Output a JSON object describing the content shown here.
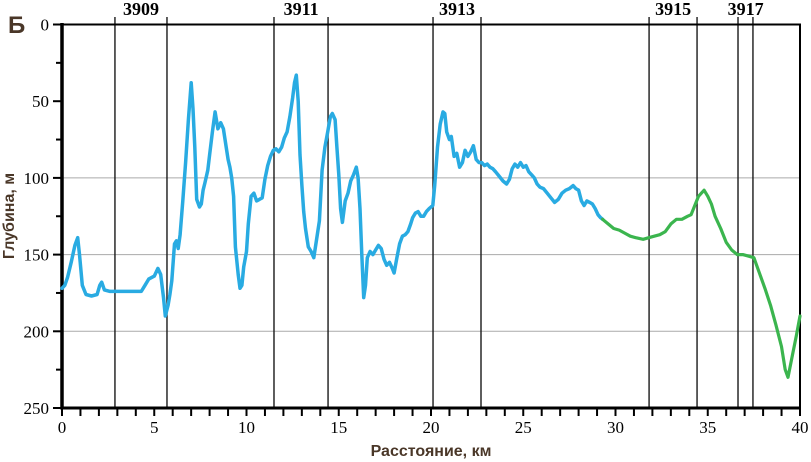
{
  "figure": {
    "corner_label": "Б",
    "background_color": "#ffffff",
    "border_color": "#000000",
    "gridline_color": "#aaaaaa",
    "axis_title_color": "#4a3728",
    "tick_label_color": "#000000",
    "gridlines_y_m": [
      100,
      150,
      200
    ],
    "station_lines": {
      "color": "#1a1a1a",
      "stations": [
        {
          "label": "3909",
          "label_km": 4.28,
          "lines_km": [
            2.87,
            5.69
          ]
        },
        {
          "label": "3911",
          "label_km": 12.96,
          "lines_km": [
            11.49,
            14.42
          ]
        },
        {
          "label": "3913",
          "label_km": 21.41,
          "lines_km": [
            20.11,
            22.71
          ]
        },
        {
          "label": "3915",
          "label_km": 33.12,
          "lines_km": [
            31.82,
            34.42
          ]
        },
        {
          "label": "3917",
          "label_km": 37.05,
          "lines_km": [
            36.64,
            37.45
          ]
        }
      ]
    }
  },
  "chart_data": {
    "type": "line",
    "title": "",
    "xlabel": "Расстояние, км",
    "ylabel": "Глубина, м",
    "xlim": [
      0,
      40
    ],
    "ylim": [
      0,
      250
    ],
    "y_inverted": true,
    "grid": "horizontal only at 100/150/200",
    "legend": "none",
    "x_axis": {
      "minor_step": 1,
      "label_step": 5,
      "tick_labels": [
        "0",
        "5",
        "10",
        "15",
        "20",
        "25",
        "30",
        "35",
        "40"
      ]
    },
    "y_axis": {
      "minor_step": 25,
      "label_step": 50,
      "tick_labels": [
        "0",
        "50",
        "100",
        "150",
        "200",
        "250"
      ]
    },
    "series": [
      {
        "name": "depth-profile-west-segment",
        "color": "#29abe2",
        "width": 3.5,
        "points": [
          [
            0.0,
            172
          ],
          [
            0.15,
            170
          ],
          [
            0.3,
            165
          ],
          [
            0.5,
            155
          ],
          [
            0.7,
            144
          ],
          [
            0.85,
            139
          ],
          [
            0.95,
            150
          ],
          [
            1.1,
            170
          ],
          [
            1.3,
            176
          ],
          [
            1.6,
            177
          ],
          [
            1.9,
            176
          ],
          [
            2.05,
            170
          ],
          [
            2.15,
            168
          ],
          [
            2.3,
            173
          ],
          [
            2.6,
            174
          ],
          [
            3.0,
            174
          ],
          [
            3.5,
            174
          ],
          [
            4.0,
            174
          ],
          [
            4.3,
            174
          ],
          [
            4.5,
            170
          ],
          [
            4.7,
            166
          ],
          [
            5.0,
            164
          ],
          [
            5.2,
            159
          ],
          [
            5.35,
            163
          ],
          [
            5.5,
            178
          ],
          [
            5.6,
            190
          ],
          [
            5.75,
            183
          ],
          [
            5.85,
            176
          ],
          [
            5.95,
            167
          ],
          [
            6.1,
            143
          ],
          [
            6.2,
            141
          ],
          [
            6.3,
            146
          ],
          [
            6.4,
            137
          ],
          [
            6.55,
            115
          ],
          [
            6.7,
            90
          ],
          [
            6.85,
            62
          ],
          [
            7.0,
            38
          ],
          [
            7.1,
            55
          ],
          [
            7.2,
            80
          ],
          [
            7.3,
            114
          ],
          [
            7.45,
            119
          ],
          [
            7.55,
            117
          ],
          [
            7.65,
            108
          ],
          [
            7.75,
            103
          ],
          [
            7.9,
            95
          ],
          [
            8.0,
            85
          ],
          [
            8.15,
            70
          ],
          [
            8.3,
            57
          ],
          [
            8.45,
            68
          ],
          [
            8.6,
            64
          ],
          [
            8.75,
            68
          ],
          [
            8.9,
            80
          ],
          [
            9.0,
            88
          ],
          [
            9.1,
            93
          ],
          [
            9.2,
            100
          ],
          [
            9.3,
            112
          ],
          [
            9.4,
            145
          ],
          [
            9.55,
            163
          ],
          [
            9.65,
            172
          ],
          [
            9.75,
            170
          ],
          [
            9.85,
            158
          ],
          [
            10.0,
            148
          ],
          [
            10.1,
            130
          ],
          [
            10.25,
            112
          ],
          [
            10.4,
            110
          ],
          [
            10.55,
            115
          ],
          [
            10.7,
            114
          ],
          [
            10.85,
            113
          ],
          [
            11.0,
            101
          ],
          [
            11.15,
            92
          ],
          [
            11.3,
            86
          ],
          [
            11.45,
            82
          ],
          [
            11.6,
            81
          ],
          [
            11.75,
            83
          ],
          [
            11.9,
            80
          ],
          [
            12.05,
            74
          ],
          [
            12.2,
            70
          ],
          [
            12.35,
            60
          ],
          [
            12.5,
            48
          ],
          [
            12.6,
            38
          ],
          [
            12.7,
            33
          ],
          [
            12.8,
            50
          ],
          [
            12.9,
            85
          ],
          [
            13.0,
            105
          ],
          [
            13.1,
            122
          ],
          [
            13.2,
            133
          ],
          [
            13.35,
            145
          ],
          [
            13.5,
            148
          ],
          [
            13.65,
            152
          ],
          [
            13.8,
            140
          ],
          [
            13.95,
            128
          ],
          [
            14.1,
            95
          ],
          [
            14.25,
            80
          ],
          [
            14.4,
            70
          ],
          [
            14.55,
            60
          ],
          [
            14.65,
            58
          ],
          [
            14.8,
            62
          ],
          [
            14.9,
            80
          ],
          [
            15.0,
            98
          ],
          [
            15.1,
            120
          ],
          [
            15.2,
            129
          ],
          [
            15.35,
            115
          ],
          [
            15.5,
            110
          ],
          [
            15.65,
            102
          ],
          [
            15.8,
            98
          ],
          [
            15.95,
            93
          ],
          [
            16.05,
            100
          ],
          [
            16.15,
            120
          ],
          [
            16.25,
            150
          ],
          [
            16.35,
            178
          ],
          [
            16.45,
            170
          ],
          [
            16.55,
            152
          ],
          [
            16.7,
            148
          ],
          [
            16.85,
            150
          ],
          [
            17.0,
            147
          ],
          [
            17.15,
            144
          ],
          [
            17.3,
            146
          ],
          [
            17.45,
            153
          ],
          [
            17.6,
            157
          ],
          [
            17.75,
            155
          ],
          [
            17.9,
            159
          ],
          [
            18.0,
            162
          ],
          [
            18.15,
            152
          ],
          [
            18.3,
            143
          ],
          [
            18.45,
            138
          ],
          [
            18.6,
            137
          ],
          [
            18.75,
            135
          ],
          [
            18.9,
            130
          ],
          [
            19.0,
            126
          ],
          [
            19.15,
            123
          ],
          [
            19.3,
            122
          ],
          [
            19.45,
            125
          ],
          [
            19.6,
            125
          ],
          [
            19.75,
            122
          ],
          [
            19.9,
            120
          ],
          [
            20.0,
            119
          ],
          [
            20.1,
            118
          ],
          [
            20.2,
            105
          ],
          [
            20.35,
            80
          ],
          [
            20.5,
            65
          ],
          [
            20.65,
            57
          ],
          [
            20.75,
            58
          ],
          [
            20.85,
            70
          ],
          [
            21.0,
            75
          ],
          [
            21.1,
            73
          ],
          [
            21.25,
            86
          ],
          [
            21.4,
            84
          ],
          [
            21.55,
            93
          ],
          [
            21.7,
            90
          ],
          [
            21.85,
            82
          ],
          [
            22.0,
            86
          ],
          [
            22.15,
            83
          ],
          [
            22.3,
            79
          ],
          [
            22.45,
            88
          ],
          [
            22.6,
            90
          ],
          [
            22.75,
            90
          ],
          [
            22.9,
            92
          ],
          [
            23.05,
            91
          ],
          [
            23.2,
            93
          ],
          [
            23.35,
            94
          ],
          [
            23.5,
            96
          ],
          [
            23.7,
            99
          ],
          [
            23.9,
            102
          ],
          [
            24.1,
            104
          ],
          [
            24.25,
            101
          ],
          [
            24.4,
            94
          ],
          [
            24.55,
            91
          ],
          [
            24.7,
            93
          ],
          [
            24.85,
            90
          ],
          [
            25.0,
            93
          ],
          [
            25.15,
            92
          ],
          [
            25.3,
            96
          ],
          [
            25.45,
            98
          ],
          [
            25.6,
            100
          ],
          [
            25.75,
            104
          ],
          [
            25.9,
            106
          ],
          [
            26.1,
            107
          ],
          [
            26.3,
            110
          ],
          [
            26.5,
            113
          ],
          [
            26.7,
            116
          ],
          [
            26.9,
            114
          ],
          [
            27.1,
            110
          ],
          [
            27.3,
            108
          ],
          [
            27.5,
            107
          ],
          [
            27.7,
            105
          ],
          [
            27.85,
            107
          ],
          [
            28.0,
            108
          ],
          [
            28.15,
            115
          ],
          [
            28.3,
            118
          ],
          [
            28.45,
            115
          ],
          [
            28.6,
            116
          ],
          [
            28.75,
            117
          ],
          [
            28.9,
            120
          ],
          [
            29.05,
            124
          ],
          [
            29.2,
            126
          ],
          [
            29.3,
            127
          ]
        ]
      },
      {
        "name": "depth-profile-east-segment",
        "color": "#3bb54e",
        "width": 3.2,
        "points": [
          [
            29.3,
            127
          ],
          [
            29.6,
            130
          ],
          [
            29.9,
            133
          ],
          [
            30.2,
            134
          ],
          [
            30.5,
            136
          ],
          [
            30.8,
            138
          ],
          [
            31.1,
            139
          ],
          [
            31.5,
            140
          ],
          [
            31.8,
            139
          ],
          [
            32.1,
            138
          ],
          [
            32.4,
            137
          ],
          [
            32.7,
            135
          ],
          [
            33.0,
            130
          ],
          [
            33.3,
            127
          ],
          [
            33.6,
            127
          ],
          [
            33.9,
            125
          ],
          [
            34.1,
            124
          ],
          [
            34.3,
            118
          ],
          [
            34.5,
            112
          ],
          [
            34.8,
            108
          ],
          [
            35.0,
            112
          ],
          [
            35.2,
            117
          ],
          [
            35.4,
            125
          ],
          [
            35.7,
            133
          ],
          [
            36.0,
            142
          ],
          [
            36.3,
            147
          ],
          [
            36.6,
            150
          ],
          [
            36.9,
            150
          ],
          [
            37.2,
            151
          ],
          [
            37.5,
            152
          ],
          [
            37.8,
            162
          ],
          [
            38.1,
            172
          ],
          [
            38.4,
            183
          ],
          [
            38.7,
            196
          ],
          [
            39.0,
            210
          ],
          [
            39.2,
            225
          ],
          [
            39.35,
            230
          ],
          [
            39.6,
            215
          ],
          [
            39.8,
            203
          ],
          [
            40.0,
            190
          ]
        ]
      }
    ]
  }
}
